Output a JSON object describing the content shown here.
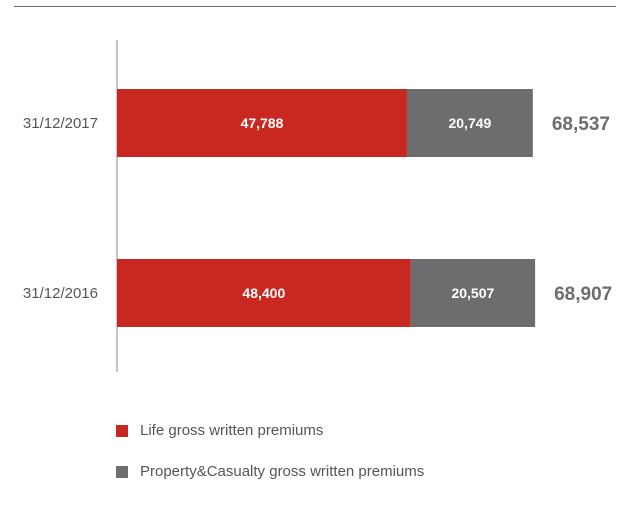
{
  "chart_data": {
    "type": "bar",
    "orientation": "horizontal",
    "stacked": true,
    "categories": [
      "31/12/2017",
      "31/12/2016"
    ],
    "series": [
      {
        "name": "Life gross written premiums",
        "values": [
          47788,
          48400
        ],
        "labels": [
          "47,788",
          "48,400"
        ],
        "color": "#c8281f"
      },
      {
        "name": "Property&Casualty gross written premiums",
        "values": [
          20749,
          20507
        ],
        "labels": [
          "20,749",
          "20,507"
        ],
        "color": "#6d6d70"
      }
    ],
    "totals": [
      68537,
      68907
    ],
    "total_labels": [
      "68,537",
      "68,907"
    ],
    "xlim": [
      0,
      74000
    ],
    "grid": false,
    "legend_position": "bottom-left"
  }
}
